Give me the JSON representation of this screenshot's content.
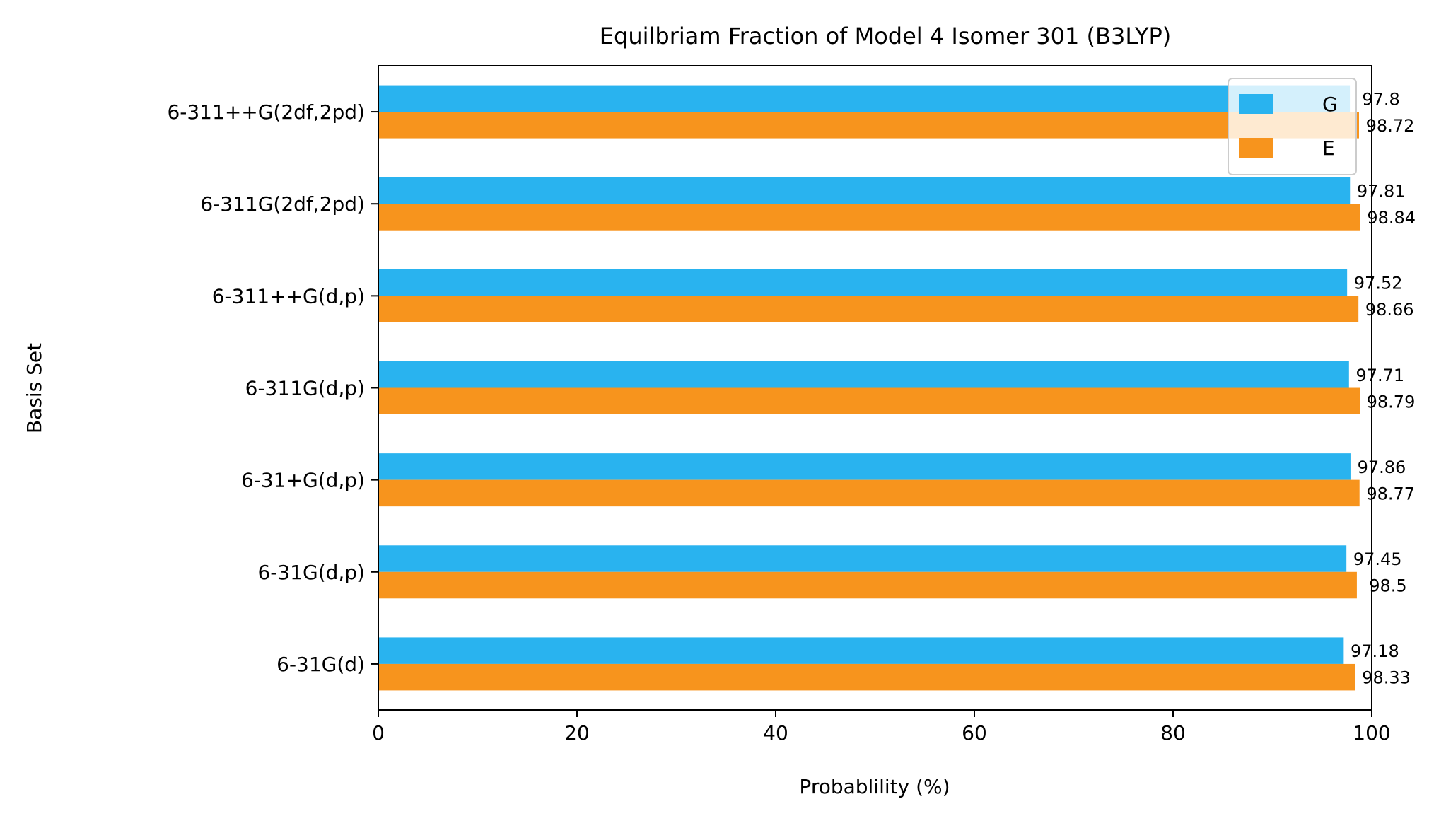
{
  "chart_data": {
    "type": "bar",
    "orientation": "horizontal",
    "title": "Equilbriam Fraction of Model 4 Isomer 301 (B3LYP)",
    "xlabel": "Probablility (%)",
    "ylabel": "Basis Set",
    "xlim": [
      0,
      100
    ],
    "xticks": [
      "0",
      "20",
      "40",
      "60",
      "80",
      "100"
    ],
    "categories": [
      "6-31G(d)",
      "6-31G(d,p)",
      "6-31+G(d,p)",
      "6-311G(d,p)",
      "6-311++G(d,p)",
      "6-311G(2df,2pd)",
      "6-311++G(2df,2pd)"
    ],
    "series": [
      {
        "name": "G",
        "color": "#29b3ef",
        "values": [
          97.18,
          97.45,
          97.86,
          97.71,
          97.52,
          97.81,
          97.8
        ],
        "labels": [
          "97.18",
          "97.45",
          "97.86",
          "97.71",
          "97.52",
          "97.81",
          "97.8"
        ]
      },
      {
        "name": "E",
        "color": "#f7941d",
        "values": [
          98.33,
          98.5,
          98.77,
          98.79,
          98.66,
          98.84,
          98.72
        ],
        "labels": [
          "98.33",
          "98.5",
          "98.77",
          "98.79",
          "98.66",
          "98.84",
          "98.72"
        ]
      }
    ],
    "grid": false,
    "legend": "top-right"
  }
}
